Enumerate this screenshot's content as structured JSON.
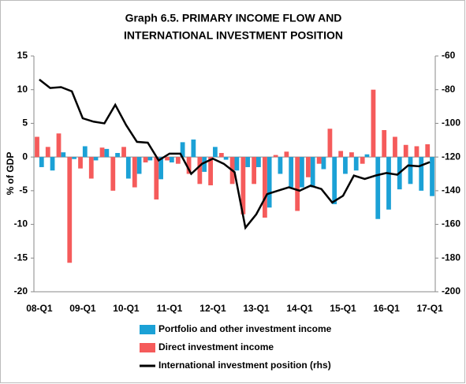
{
  "chart_data": {
    "type": "bar",
    "title": [
      "Graph 6.5. PRIMARY INCOME FLOW AND",
      "INTERNATIONAL INVESTMENT POSITION"
    ],
    "ylabel": "% of GDP",
    "categories": [
      "08-Q1",
      null,
      null,
      null,
      "09-Q1",
      null,
      null,
      null,
      "10-Q1",
      null,
      null,
      null,
      "11-Q1",
      null,
      null,
      null,
      "12-Q1",
      null,
      null,
      null,
      "13-Q1",
      null,
      null,
      null,
      "14-Q1",
      null,
      null,
      null,
      "15-Q1",
      null,
      null,
      null,
      "16-Q1",
      null,
      null,
      null,
      "17-Q1"
    ],
    "ylim": [
      -20,
      15
    ],
    "yticks": [
      -20,
      -15,
      -10,
      -5,
      0,
      5,
      10,
      15
    ],
    "y2lim": [
      -200,
      -60
    ],
    "y2ticks": [
      -200,
      -180,
      -160,
      -140,
      -120,
      -100,
      -80,
      -60
    ],
    "series": [
      {
        "name": "Portfolio and other investment income",
        "color": "#1ba1d6",
        "type": "bar",
        "values": [
          -1.5,
          -2,
          0.7,
          -0.3,
          1.6,
          -0.5,
          1.2,
          0.6,
          -3.2,
          -2.5,
          -0.5,
          -3.3,
          -0.8,
          2.2,
          2.6,
          -2.2,
          1.5,
          -0.4,
          -2,
          -1.5,
          -1.5,
          -7.5,
          -2.5,
          -4.5,
          -4.5,
          -4.5,
          -1.8,
          -7,
          -2.5,
          -2,
          0.4,
          -9.2,
          -7.8,
          -4.8,
          -4,
          -5,
          -5.8
        ]
      },
      {
        "name": "Direct investment income",
        "color": "#f55b5b",
        "type": "bar",
        "values": [
          3,
          1.5,
          3.5,
          -15.7,
          -1.7,
          -3.2,
          1.4,
          -5,
          1.5,
          -4.5,
          -0.8,
          -6.3,
          -0.5,
          -1,
          -2.5,
          -4,
          -4.2,
          0.6,
          -4,
          -8.5,
          -4,
          -9,
          0.3,
          0.8,
          -8,
          -3,
          -1,
          4.2,
          0.9,
          0.7,
          -1,
          10,
          4,
          3,
          1.8,
          1.6,
          1.9
        ]
      },
      {
        "name": "International investment position (rhs)",
        "color": "#000000",
        "type": "line",
        "axis": "y2",
        "values": [
          -74,
          -79,
          -78.5,
          -81,
          -97,
          -99,
          -100,
          -89,
          -101,
          -111,
          -111.5,
          -122,
          -118,
          -118,
          -130,
          -124,
          -121,
          -124,
          -129,
          -162,
          -154,
          -142,
          -140,
          -138,
          -140,
          -137,
          -139,
          -147,
          -143,
          -131,
          -133,
          -131,
          -129.5,
          -130.5,
          -125,
          -125.5,
          -123
        ]
      }
    ],
    "legend": "bottom"
  }
}
